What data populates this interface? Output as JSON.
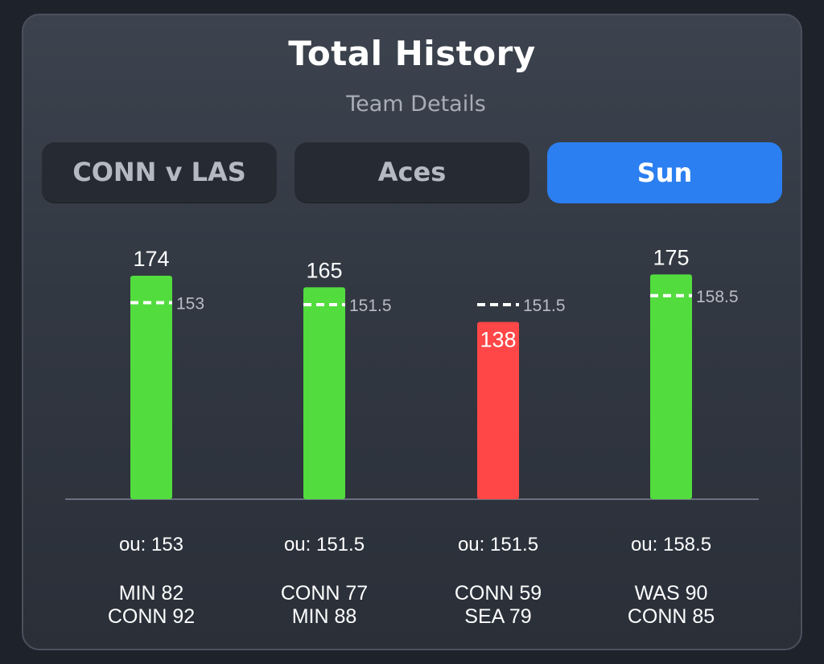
{
  "header": {
    "title": "Total History",
    "subtitle": "Team Details"
  },
  "tabs": [
    {
      "label": "CONN v LAS",
      "active": false
    },
    {
      "label": "Aces",
      "active": false
    },
    {
      "label": "Sun",
      "active": true
    }
  ],
  "colors": {
    "over": "#52dc3e",
    "under": "#ff4747",
    "active_tab": "#2b7ff0"
  },
  "chart_data": {
    "type": "bar",
    "title": "Total History",
    "subtitle": "Team Details",
    "ylim": [
      0,
      200
    ],
    "grid": false,
    "categories": [
      "MIN 82 / CONN 92",
      "CONN 77 / MIN 88",
      "CONN 59 / SEA 79",
      "WAS 90 / CONN 85"
    ],
    "games": [
      {
        "total": 174,
        "line": 153,
        "line_label": "153",
        "ou_label": "ou: 153",
        "result": "over",
        "teams": [
          "MIN 82",
          "CONN 92"
        ]
      },
      {
        "total": 165,
        "line": 151.5,
        "line_label": "151.5",
        "ou_label": "ou: 151.5",
        "result": "over",
        "teams": [
          "CONN 77",
          "MIN 88"
        ]
      },
      {
        "total": 138,
        "line": 151.5,
        "line_label": "151.5",
        "ou_label": "ou: 151.5",
        "result": "under",
        "teams": [
          "CONN 59",
          "SEA 79"
        ]
      },
      {
        "total": 175,
        "line": 158.5,
        "line_label": "158.5",
        "ou_label": "ou: 158.5",
        "result": "over",
        "teams": [
          "WAS 90",
          "CONN 85"
        ]
      }
    ]
  }
}
